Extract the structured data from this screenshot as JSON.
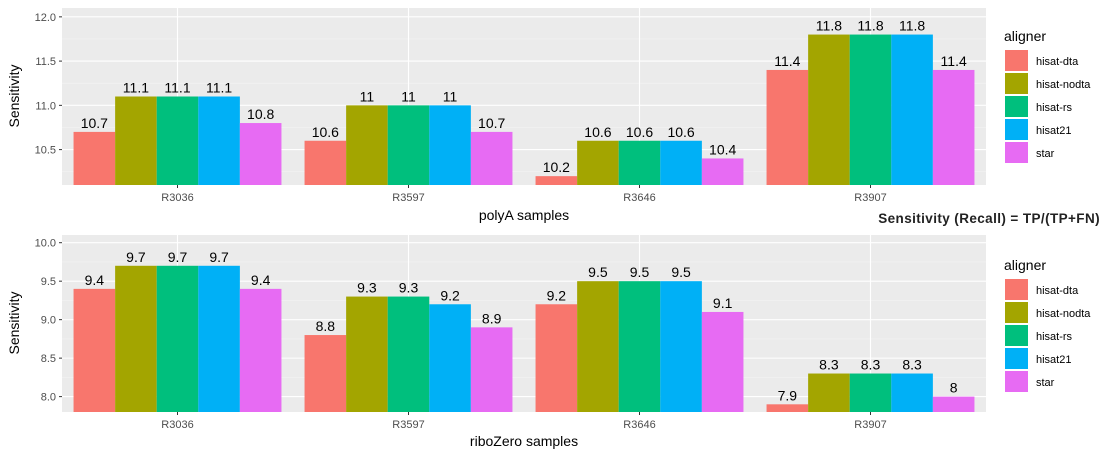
{
  "colors": {
    "panel_background": "#ebebeb",
    "grid": "#ffffff",
    "hisat-dta": "#F8766D",
    "hisat-nodta": "#A3A500",
    "hisat-rs": "#00BF7D",
    "hisat21": "#00B0F6",
    "star": "#E76BF3"
  },
  "annotation": "Sensitivity (Recall) = TP/(TP+FN)",
  "chart_data": [
    {
      "type": "bar",
      "xlabel": "polyA samples",
      "ylabel": "Sensitivity",
      "ylim": [
        10.1,
        12.1
      ],
      "yticks": [
        10.5,
        11.0,
        11.5,
        12.0
      ],
      "ytick_labels": [
        "10.5",
        "11.0",
        "11.5",
        "12.0"
      ],
      "grid": true,
      "legend_title": "aligner",
      "legend_position": "right",
      "categories": [
        "R3036",
        "R3597",
        "R3646",
        "R3907"
      ],
      "series": [
        {
          "name": "hisat-dta",
          "values": [
            10.7,
            10.6,
            10.2,
            11.4
          ],
          "labels": [
            "10.7",
            "10.6",
            "10.2",
            "11.4"
          ]
        },
        {
          "name": "hisat-nodta",
          "values": [
            11.1,
            11.0,
            10.6,
            11.8
          ],
          "labels": [
            "11.1",
            "11",
            "10.6",
            "11.8"
          ]
        },
        {
          "name": "hisat-rs",
          "values": [
            11.1,
            11.0,
            10.6,
            11.8
          ],
          "labels": [
            "11.1",
            "11",
            "10.6",
            "11.8"
          ]
        },
        {
          "name": "hisat21",
          "values": [
            11.1,
            11.0,
            10.6,
            11.8
          ],
          "labels": [
            "11.1",
            "11",
            "10.6",
            "11.8"
          ]
        },
        {
          "name": "star",
          "values": [
            10.8,
            10.7,
            10.4,
            11.4
          ],
          "labels": [
            "10.8",
            "10.7",
            "10.4",
            "11.4"
          ]
        }
      ]
    },
    {
      "type": "bar",
      "xlabel": "riboZero samples",
      "ylabel": "Sensitivity",
      "ylim": [
        7.8,
        10.1
      ],
      "yticks": [
        8.0,
        8.5,
        9.0,
        9.5,
        10.0
      ],
      "ytick_labels": [
        "8.0",
        "8.5",
        "9.0",
        "9.5",
        "10.0"
      ],
      "grid": true,
      "legend_title": "aligner",
      "legend_position": "right",
      "categories": [
        "R3036",
        "R3597",
        "R3646",
        "R3907"
      ],
      "series": [
        {
          "name": "hisat-dta",
          "values": [
            9.4,
            8.8,
            9.2,
            7.9
          ],
          "labels": [
            "9.4",
            "8.8",
            "9.2",
            "7.9"
          ]
        },
        {
          "name": "hisat-nodta",
          "values": [
            9.7,
            9.3,
            9.5,
            8.3
          ],
          "labels": [
            "9.7",
            "9.3",
            "9.5",
            "8.3"
          ]
        },
        {
          "name": "hisat-rs",
          "values": [
            9.7,
            9.3,
            9.5,
            8.3
          ],
          "labels": [
            "9.7",
            "9.3",
            "9.5",
            "8.3"
          ]
        },
        {
          "name": "hisat21",
          "values": [
            9.7,
            9.2,
            9.5,
            8.3
          ],
          "labels": [
            "9.7",
            "9.2",
            "9.5",
            "8.3"
          ]
        },
        {
          "name": "star",
          "values": [
            9.4,
            8.9,
            9.1,
            8.0
          ],
          "labels": [
            "9.4",
            "8.9",
            "9.1",
            "8"
          ]
        }
      ]
    }
  ]
}
